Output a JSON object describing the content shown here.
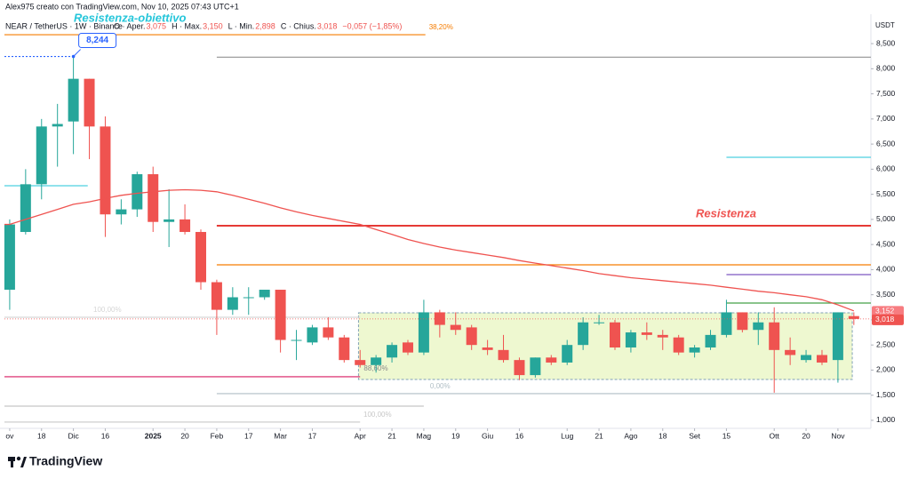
{
  "header": {
    "author": "Alex975 creato con TradingView.com, Nov 10, 2025 07:43 UTC+1",
    "symbol": "NEAR / TetherUS · 1W · Binance",
    "ohlc": [
      {
        "name": "O · Aper.",
        "value": "3,075"
      },
      {
        "name": "H · Max.",
        "value": "3,150"
      },
      {
        "name": "L · Min.",
        "value": "2,898"
      },
      {
        "name": "C · Chius.",
        "value": "3,018"
      }
    ],
    "change": "−0,057 (−1,85%)"
  },
  "footer": {
    "brand": "TradingView"
  },
  "chart_data": {
    "type": "candlestick",
    "y_axis_label": "USDT",
    "colors": {
      "up": "#26a69a",
      "down": "#ef5350"
    },
    "xlim": [
      -0.33,
      54.07
    ],
    "xticks": [
      {
        "value": 0,
        "label": "ov"
      },
      {
        "value": 2,
        "label": "18"
      },
      {
        "value": 4,
        "label": "Dic"
      },
      {
        "value": 6,
        "label": "16"
      },
      {
        "value": 9,
        "label": "2025"
      },
      {
        "value": 11,
        "label": "20"
      },
      {
        "value": 13,
        "label": "Feb"
      },
      {
        "value": 15,
        "label": "17"
      },
      {
        "value": 17,
        "label": "Mar"
      },
      {
        "value": 19,
        "label": "17"
      },
      {
        "value": 22,
        "label": "Apr"
      },
      {
        "value": 24,
        "label": "21"
      },
      {
        "value": 26,
        "label": "Mag"
      },
      {
        "value": 28,
        "label": "19"
      },
      {
        "value": 30,
        "label": "Giu"
      },
      {
        "value": 32,
        "label": "16"
      },
      {
        "value": 35,
        "label": "Lug"
      },
      {
        "value": 37,
        "label": "21"
      },
      {
        "value": 39,
        "label": "Ago"
      },
      {
        "value": 41,
        "label": "18"
      },
      {
        "value": 43,
        "label": "Set"
      },
      {
        "value": 45,
        "label": "15"
      },
      {
        "value": 48,
        "label": "Ott"
      },
      {
        "value": 50,
        "label": "20"
      },
      {
        "value": 52,
        "label": "Nov"
      }
    ],
    "ylim": [
      840,
      9050
    ],
    "yticks": [
      {
        "value": 1000,
        "label": "1,000"
      },
      {
        "value": 1500,
        "label": "1,500"
      },
      {
        "value": 2000,
        "label": "2,000"
      },
      {
        "value": 2500,
        "label": "2,500"
      },
      {
        "value": 3000,
        "label": "3,000"
      },
      {
        "value": 3500,
        "label": "3,500"
      },
      {
        "value": 4000,
        "label": "4,000"
      },
      {
        "value": 4500,
        "label": "4,500"
      },
      {
        "value": 5000,
        "label": "5,000"
      },
      {
        "value": 5500,
        "label": "5,500"
      },
      {
        "value": 6000,
        "label": "6,000"
      },
      {
        "value": 6500,
        "label": "6,500"
      },
      {
        "value": 7000,
        "label": "7,000"
      },
      {
        "value": 7500,
        "label": "7,500"
      },
      {
        "value": 8000,
        "label": "8,000"
      },
      {
        "value": 8500,
        "label": "8,500"
      }
    ],
    "open": [
      3600,
      4750,
      5700,
      6850,
      6950,
      7800,
      6850,
      5100,
      5200,
      5900,
      4950,
      5000,
      4750,
      3750,
      3200,
      3450,
      3450,
      3600,
      2600,
      2550,
      2850,
      2650,
      2200,
      2100,
      2250,
      2550,
      2350,
      3150,
      2900,
      2850,
      2450,
      2400,
      2200,
      1900,
      2250,
      2150,
      2500,
      2950,
      2950,
      2450,
      2750,
      2700,
      2650,
      2350,
      2450,
      2700,
      3150,
      2800,
      2950,
      2400,
      2200,
      2300,
      2200,
      3075
    ],
    "high": [
      5000,
      6000,
      7000,
      7300,
      8244,
      7800,
      7050,
      5400,
      5950,
      6050,
      5600,
      5300,
      4800,
      3800,
      3650,
      3650,
      3600,
      3600,
      2800,
      2900,
      3050,
      2700,
      2400,
      2300,
      2550,
      2600,
      3400,
      3200,
      3150,
      2900,
      2600,
      2700,
      2250,
      2250,
      2300,
      2600,
      3050,
      3100,
      3000,
      2800,
      2950,
      2800,
      2700,
      2500,
      2800,
      3400,
      3150,
      3150,
      3250,
      2650,
      2400,
      2400,
      3150,
      3150
    ],
    "low": [
      3200,
      4700,
      5400,
      6050,
      6300,
      6200,
      4650,
      4900,
      5050,
      4750,
      4450,
      4700,
      3600,
      2700,
      3100,
      3100,
      3400,
      2350,
      2200,
      2500,
      2600,
      2150,
      2050,
      1950,
      2150,
      2300,
      2300,
      2650,
      2700,
      2400,
      2300,
      2150,
      1800,
      1850,
      2100,
      2100,
      2400,
      2900,
      2400,
      2350,
      2600,
      2400,
      2300,
      2250,
      2400,
      2650,
      2750,
      2500,
      1550,
      2100,
      2150,
      2100,
      1750,
      2898
    ],
    "close": [
      4900,
      5700,
      6850,
      6900,
      7800,
      6850,
      5100,
      5200,
      5900,
      4950,
      5000,
      4750,
      3750,
      3200,
      3450,
      3450,
      3600,
      2600,
      2600,
      2850,
      2650,
      2200,
      2100,
      2250,
      2500,
      2350,
      3150,
      2900,
      2800,
      2500,
      2400,
      2200,
      1900,
      2250,
      2150,
      2500,
      2950,
      2950,
      2450,
      2750,
      2700,
      2650,
      2350,
      2450,
      2700,
      3150,
      2800,
      2950,
      2400,
      2300,
      2300,
      2150,
      3150,
      3018
    ],
    "moving_average": {
      "color": "#ef5350",
      "values": [
        4900,
        5000,
        5100,
        5200,
        5300,
        5350,
        5420,
        5480,
        5520,
        5550,
        5580,
        5590,
        5580,
        5550,
        5480,
        5400,
        5320,
        5230,
        5150,
        5080,
        5020,
        4960,
        4900,
        4800,
        4700,
        4600,
        4520,
        4450,
        4390,
        4340,
        4290,
        4240,
        4180,
        4130,
        4080,
        4030,
        3980,
        3920,
        3880,
        3840,
        3810,
        3780,
        3750,
        3720,
        3690,
        3650,
        3610,
        3570,
        3540,
        3500,
        3460,
        3400,
        3300,
        3180
      ]
    },
    "levels": [
      {
        "value": 8677,
        "start": -0.33,
        "end": 26.1,
        "color": "#f57c00",
        "label": "38,20%"
      },
      {
        "value": 8244,
        "start": -0.33,
        "end": 4,
        "color": "#2962ff"
      },
      {
        "value": 8230,
        "start": 13,
        "end": 54.07,
        "color": "#9e9e9e"
      },
      {
        "value": 6236,
        "start": 45,
        "end": 54.07,
        "color": "#4dd0e1"
      },
      {
        "value": 5670,
        "start": -0.33,
        "end": 4.9,
        "color": "#4dd0e1"
      },
      {
        "value": 4874,
        "start": 13,
        "end": 54.07,
        "color": "#e53935"
      },
      {
        "value": 4096,
        "start": 13,
        "end": 54.07,
        "color": "#f57c00"
      },
      {
        "value": 3901,
        "start": 45,
        "end": 54.07,
        "color": "#7e57c2"
      },
      {
        "value": 3335,
        "start": 45,
        "end": 54.07,
        "color": "#43a047"
      },
      {
        "value": 3052,
        "start": -0.33,
        "end": 22,
        "color": "#d6d6d6",
        "label": "100,00%"
      },
      {
        "value": 1867,
        "start": -0.33,
        "end": 22,
        "color": "#d81b60"
      },
      {
        "value": 1531,
        "start": 13,
        "end": 54.07,
        "color": "#b0bec5",
        "label": "0,00%"
      },
      {
        "value": 1283,
        "start": -0.33,
        "end": 26,
        "color": "#c8c8c8"
      },
      {
        "value": 965,
        "start": -0.33,
        "end": 22,
        "color": "#c8c8c8",
        "label": "100,00%"
      }
    ],
    "range_box": {
      "top": 3140,
      "bottom": 1814,
      "start": 21.9,
      "end": 52.9,
      "label": "88,60%"
    },
    "annotations": [
      {
        "text": "Resistenza-obiettivo",
        "color": "#26c6da"
      },
      {
        "text": "Resistenza",
        "color": "#ef5350"
      }
    ],
    "callout": {
      "value": 8244,
      "label": "8,244",
      "candle": 4
    },
    "price_labels": [
      {
        "value": 3152,
        "label": "3,152",
        "color": "#f77c80"
      },
      {
        "value": 3018,
        "label": "3,018",
        "color": "#ef5350"
      }
    ]
  }
}
